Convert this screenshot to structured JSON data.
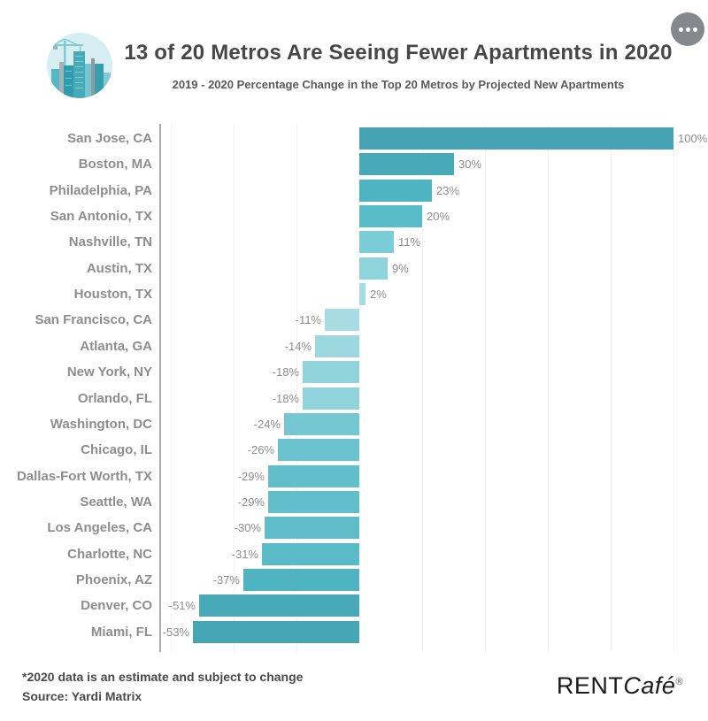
{
  "header": {
    "title": "13 of 20 Metros Are Seeing Fewer Apartments in 2020",
    "subtitle": "2019 - 2020 Percentage Change in the Top 20 Metros by Projected New Apartments",
    "menu_icon": "ellipsis-menu",
    "hero_icon": "city-buildings-crane"
  },
  "chart_data": {
    "type": "bar",
    "orientation": "horizontal",
    "title": "13 of 20 Metros Are Seeing Fewer Apartments in 2020",
    "subtitle": "2019 - 2020 Percentage Change in the Top 20 Metros by Projected New Apartments",
    "unit": "%",
    "xlim": [
      -63,
      108
    ],
    "grid": {
      "axis": "x",
      "interval_pct": 20,
      "range_pct": [
        -60,
        100
      ],
      "style": "faint"
    },
    "legend": "none",
    "categories": [
      "San Jose, CA",
      "Boston, MA",
      "Philadelphia, PA",
      "San Antonio, TX",
      "Nashville, TN",
      "Austin, TX",
      "Houston, TX",
      "San Francisco, CA",
      "Atlanta, GA",
      "New York, NY",
      "Orlando, FL",
      "Washington, DC",
      "Chicago, IL",
      "Dallas-Fort Worth, TX",
      "Seattle, WA",
      "Los Angeles, CA",
      "Charlotte, NC",
      "Phoenix, AZ",
      "Denver, CO",
      "Miami, FL"
    ],
    "values": [
      100,
      30,
      23,
      20,
      11,
      9,
      2,
      -11,
      -14,
      -18,
      -18,
      -24,
      -26,
      -29,
      -29,
      -30,
      -31,
      -37,
      -51,
      -53
    ],
    "labels": [
      "100%",
      "30%",
      "23%",
      "20%",
      "11%",
      "9%",
      "2%",
      "-11%",
      "-14%",
      "-18%",
      "-18%",
      "-24%",
      "-26%",
      "-29%",
      "-29%",
      "-30%",
      "-31%",
      "-37%",
      "-51%",
      "-53%"
    ],
    "bar_colors": [
      "#45a3b4",
      "#48aab9",
      "#4eb4c2",
      "#58bcc9",
      "#7accd7",
      "#8fd4dd",
      "#a4dde4",
      "#a9dce2",
      "#9dd8df",
      "#90d3db",
      "#90d3db",
      "#75c7d2",
      "#6ac3ce",
      "#61bfcb",
      "#61bfcb",
      "#5ebdc9",
      "#5abbc7",
      "#50b3c1",
      "#48a9b8",
      "#46a6b5"
    ]
  },
  "footer": {
    "note": "*2020 data is an estimate and subject to change",
    "source": "Source: Yardi Matrix",
    "logo_rent": "RENT",
    "logo_cafe": "Café",
    "logo_reg": "®"
  },
  "colors": {
    "accent_dark": "#45a3b4",
    "accent_light": "#a9dce2",
    "axis_gray": "#a9a9a9",
    "label_gray": "#8d8d8d",
    "title_gray": "#474747",
    "menu_gray": "#85898d",
    "icon_bg": "#d6edf2"
  }
}
